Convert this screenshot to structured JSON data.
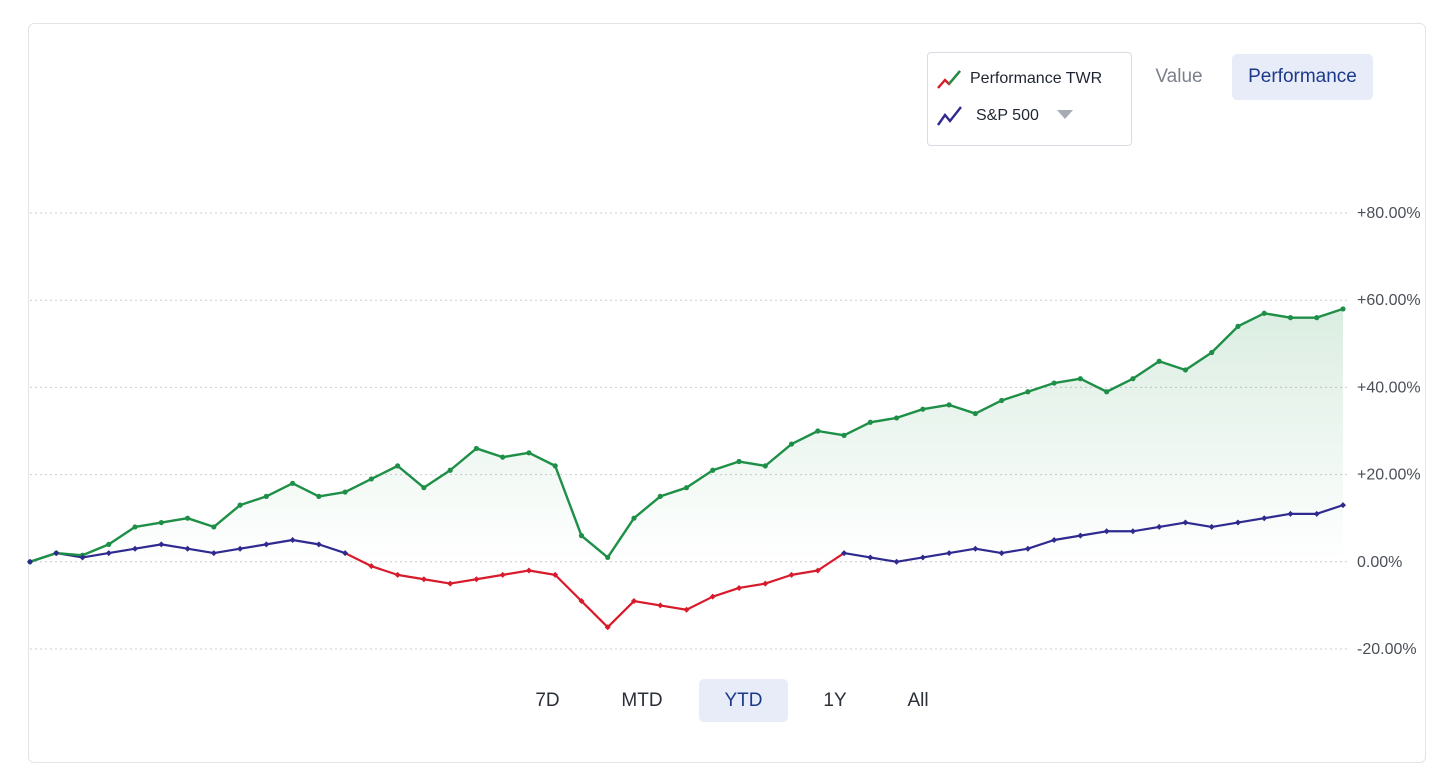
{
  "legend": {
    "items": [
      {
        "label": "Performance TWR",
        "icon": "red-green-line-icon"
      },
      {
        "label": "S&P 500",
        "icon": "blue-line-icon"
      }
    ]
  },
  "toggle": {
    "value_label": "Value",
    "performance_label": "Performance",
    "selected": "Performance"
  },
  "ranges": {
    "items": [
      "7D",
      "MTD",
      "YTD",
      "1Y",
      "All"
    ],
    "selected": "YTD"
  },
  "colors": {
    "portfolio": "#1e8f47",
    "sp500_up": "#2f2a8f",
    "sp500_down": "#d81b2c",
    "fill": "#1e8f47",
    "grid": "#c9ccd2",
    "accent_bg": "#e8ecf8",
    "accent_text": "#1d3a8a"
  },
  "chart_data": {
    "type": "line",
    "ylim": [
      -20,
      80
    ],
    "yticks": [
      "+80.00%",
      "+60.00%",
      "+40.00%",
      "+20.00%",
      "0.00%",
      "-20.00%"
    ],
    "ytick_values": [
      80,
      60,
      40,
      20,
      0,
      -20
    ],
    "grid": true,
    "x": [
      0,
      2,
      4,
      6,
      8,
      10,
      12,
      14,
      16,
      18,
      20,
      22,
      24,
      26,
      28,
      30,
      32,
      34,
      36,
      38,
      40,
      42,
      44,
      46,
      48,
      50,
      52,
      54,
      56,
      58,
      60,
      62,
      64,
      66,
      68,
      70,
      72,
      74,
      76,
      78,
      80,
      82,
      84,
      86,
      88,
      90,
      92,
      94,
      96,
      98,
      100
    ],
    "series": [
      {
        "name": "Performance TWR",
        "area": true,
        "values": [
          0,
          2,
          1.5,
          4,
          8,
          9,
          10,
          8,
          13,
          15,
          18,
          15,
          16,
          19,
          22,
          17,
          21,
          26,
          24,
          25,
          22,
          6,
          1,
          10,
          15,
          17,
          21,
          23,
          22,
          27,
          30,
          29,
          32,
          33,
          35,
          36,
          34,
          37,
          39,
          41,
          42,
          39,
          42,
          46,
          44,
          48,
          54,
          57,
          56,
          56,
          58
        ]
      },
      {
        "name": "S&P 500",
        "values": [
          0,
          2,
          1,
          2,
          3,
          4,
          3,
          2,
          3,
          4,
          5,
          4,
          2,
          -1,
          -3,
          -4,
          -5,
          -4,
          -3,
          -2,
          -3,
          -9,
          -15,
          -9,
          -10,
          -11,
          -8,
          -6,
          -5,
          -3,
          -2,
          2,
          1,
          0,
          1,
          2,
          3,
          2,
          3,
          5,
          6,
          7,
          7,
          8,
          9,
          8,
          9,
          10,
          11,
          11,
          13
        ]
      }
    ]
  }
}
